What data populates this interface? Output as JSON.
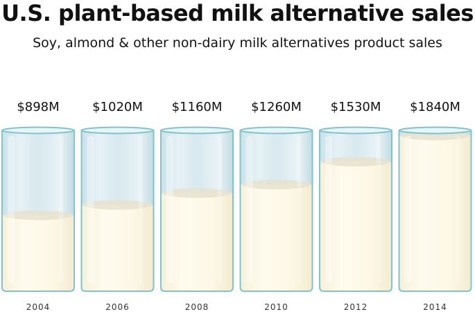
{
  "title": "U.S. plant-based milk alternative sales",
  "subtitle": "Soy, almond & other non-dairy milk alternatives product sales",
  "chart_data": {
    "type": "bar",
    "title": "U.S. plant-based milk alternative sales",
    "subtitle": "Soy, almond & other non-dairy milk alternatives product sales",
    "categories": [
      "2004",
      "2006",
      "2008",
      "2010",
      "2012",
      "2014"
    ],
    "values": [
      898,
      1020,
      1160,
      1260,
      1530,
      1840
    ],
    "value_labels": [
      "$898M",
      "$1020M",
      "$1160M",
      "$1260M",
      "$1530M",
      "$1840M"
    ],
    "unit": "$M",
    "ylim": [
      0,
      1900
    ],
    "xlabel": "",
    "ylabel": "",
    "grid": false,
    "legend": "none",
    "colors": {
      "milk": "#fdf8e6",
      "milk_surface": "#e6e2cf",
      "glass_fill": "#d9eaf0",
      "glass_stroke": "#7fc3cc"
    }
  }
}
